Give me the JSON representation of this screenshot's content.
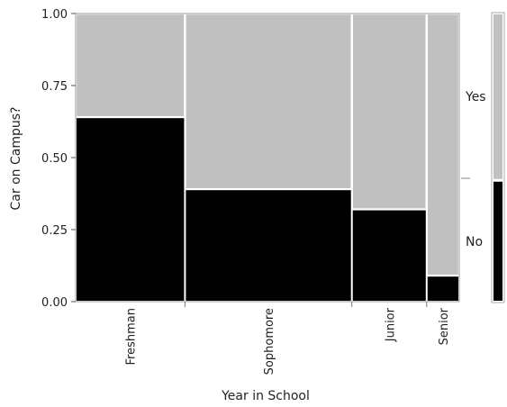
{
  "chart_data": {
    "type": "mosaic",
    "xlabel": "Year in School",
    "ylabel": "Car on Campus?",
    "ylim": [
      0,
      1
    ],
    "yticks": [
      "0.00",
      "0.25",
      "0.50",
      "0.75",
      "1.00"
    ],
    "categories": [
      "Freshman",
      "Sophomore",
      "Junior",
      "Senior"
    ],
    "category_shares": [
      0.285,
      0.435,
      0.195,
      0.085
    ],
    "series": [
      {
        "name": "No",
        "values": [
          0.64,
          0.39,
          0.32,
          0.09
        ],
        "color": "#000000"
      },
      {
        "name": "Yes",
        "values": [
          0.36,
          0.61,
          0.68,
          0.91
        ],
        "color": "#c0c0c0"
      }
    ],
    "side_bar": {
      "No": 0.42,
      "Yes": 0.58
    },
    "legend": [
      "Yes",
      "No"
    ]
  }
}
